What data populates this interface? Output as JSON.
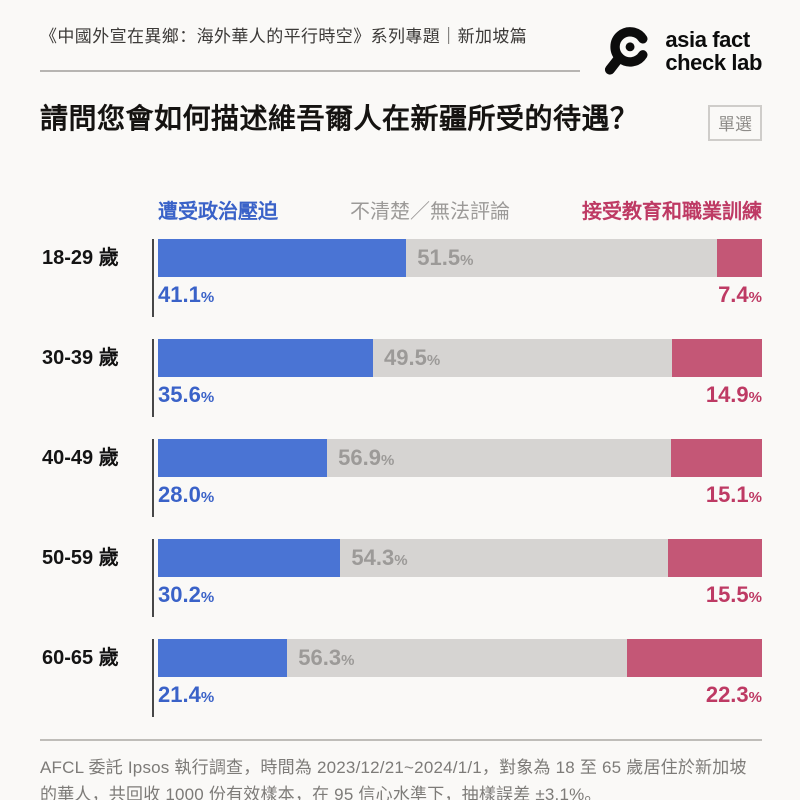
{
  "header": {
    "series_title": "《中國外宣在異鄉：海外華人的平行時空》系列專題｜新加坡篇",
    "logo": {
      "icon": "magnifier-logo",
      "line1": "asia fact",
      "line2": "check lab"
    }
  },
  "question": {
    "title": "請問您會如何描述維吾爾人在新疆所受的待遇？",
    "badge": "單選"
  },
  "chart_data": {
    "type": "bar",
    "orientation": "horizontal",
    "stacked": true,
    "unit": "%",
    "xlim": [
      0,
      100
    ],
    "legend_position": "top",
    "grid": false,
    "categories": [
      "18-29 歲",
      "30-39 歲",
      "40-49 歲",
      "50-59 歲",
      "60-65 歲"
    ],
    "series": [
      {
        "name": "遭受政治壓迫",
        "color": "#4a74d4",
        "label_color": "#3a62c8",
        "values": [
          41.1,
          35.6,
          28.0,
          30.2,
          21.4
        ]
      },
      {
        "name": "不清楚／無法評論",
        "color": "#d6d4d2",
        "label_color": "#9c9a98",
        "values": [
          51.5,
          49.5,
          56.9,
          54.3,
          56.3
        ]
      },
      {
        "name": "接受教育和職業訓練",
        "color": "#c45776",
        "label_color": "#be3a64",
        "values": [
          7.4,
          14.9,
          15.1,
          15.5,
          22.3
        ]
      }
    ]
  },
  "footer": {
    "note": "AFCL 委託 Ipsos 執行調查，時間為 2023/12/21~2024/1/1，對象為 18 至 65 歲居住於新加坡的華人，共回收 1000 份有效樣本，在 95 信心水準下，抽樣誤差 ±3.1%。"
  }
}
